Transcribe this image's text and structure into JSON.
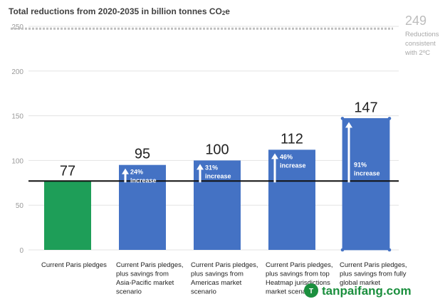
{
  "chart_data": {
    "type": "bar",
    "title": "Total reductions from 2020-2035 in billion tonnes CO2e",
    "title_parts": {
      "main": "Total reductions from 2020-2035 in billion tonnes CO",
      "sub": "2",
      "tail": "e"
    },
    "categories": [
      [
        "Current Paris pledges"
      ],
      [
        "Current Paris pledges,",
        "plus savings from",
        "Asia-Pacific market",
        "scenario"
      ],
      [
        "Current Paris pledges,",
        "plus savings from",
        "Americas market",
        "scenario"
      ],
      [
        "Current Paris pledges,",
        "plus savings from top",
        "Heatmap jurisdictions",
        "market scenario"
      ],
      [
        "Current Paris pledges,",
        "plus savings from fully",
        "global market"
      ]
    ],
    "values": [
      77,
      95,
      100,
      112,
      147
    ],
    "value_labels": [
      "77",
      "95",
      "100",
      "112",
      "147"
    ],
    "increase_labels": [
      null,
      [
        "24%",
        "increase"
      ],
      [
        "31%",
        "increase"
      ],
      [
        "46%",
        "increase"
      ],
      [
        "91%",
        "increase"
      ]
    ],
    "colors": [
      "#1e9e58",
      "#4472c4",
      "#4472c4",
      "#4472c4",
      "#4472c4"
    ],
    "ylim": [
      0,
      250
    ],
    "yticks": [
      0,
      50,
      100,
      150,
      200,
      250
    ],
    "grid": true,
    "baseline_value": 77,
    "reference_line": {
      "value": 249,
      "label": "249",
      "note": [
        "Reductions",
        "consistent",
        "with 2ºC"
      ]
    }
  },
  "watermark": {
    "text": "tanpaifang.com",
    "logo": "tanpaifang-logo-icon",
    "color": "#1b8f3e"
  }
}
